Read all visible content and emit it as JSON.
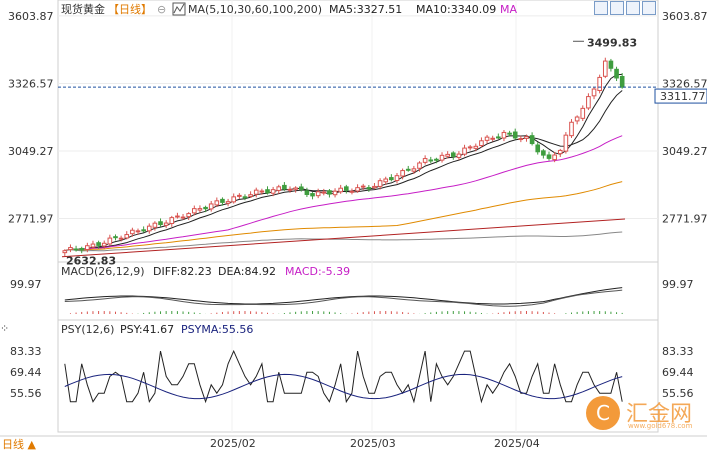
{
  "chart_data": {
    "type": "candlestick",
    "instrument": "现货黄金",
    "period": "【日线】",
    "main": {
      "ma_label": "MA(5,10,30,60,100,200)",
      "ma5_label": "MA5:3327.51",
      "ma10_label": "MA10:3340.09",
      "ma_more": "MA",
      "y_ticks": [
        "3603.87",
        "3326.57",
        "3049.27",
        "2771.97"
      ],
      "y_tick_values": [
        3603.87,
        3326.57,
        3049.27,
        2771.97
      ],
      "ylim": [
        2610,
        3620
      ],
      "current_price": "3311.77",
      "current_value": 3311.77,
      "max_label": "3499.83",
      "max_value": 3499.83,
      "min_label": "2632.83",
      "min_value": 2632.83
    },
    "x_ticks": [
      "2025/02",
      "2025/03",
      "2025/04"
    ],
    "macd": {
      "label": "MACD(26,12,9)",
      "diff": "DIFF:82.23",
      "dea": "DEA:84.92",
      "macd": "MACD:-5.39",
      "y_tick": "99.97"
    },
    "psy": {
      "label": "PSY(12,6)",
      "psy": "PSY:41.67",
      "psyma": "PSYMA:55.56",
      "y_ticks": [
        "83.33",
        "69.44",
        "55.56"
      ],
      "y_tick_values": [
        83.33,
        69.44,
        55.56
      ],
      "ylim": [
        30,
        92
      ]
    },
    "colors": {
      "up": "#d9534f",
      "down": "#3f9d3f",
      "ma5": "#222222",
      "ma10": "#222222",
      "ma30": "#c61ec6",
      "ma60": "#e08a00",
      "ma100": "#888888",
      "ma200": "#b22222",
      "psyma": "#1a237e",
      "price_line": "#1e50a0"
    }
  },
  "footer": {
    "period_button": "日线 ▲"
  },
  "watermark": {
    "name": "汇金网",
    "url": "www.gold678.com"
  }
}
